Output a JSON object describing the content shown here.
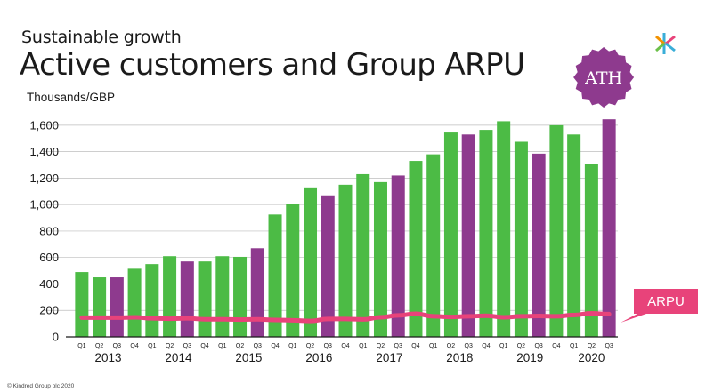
{
  "header": {
    "subtitle": "Sustainable growth",
    "title": "Active customers and Group ARPU",
    "units": "Thousands/GBP"
  },
  "footer": {
    "copyright": "© Kindred Group plc 2020"
  },
  "callouts": {
    "ath": "ATH",
    "arpu": "ARPU"
  },
  "colors": {
    "green": "#4cbb45",
    "purple": "#8e3a8e",
    "pink": "#e8437a",
    "ath_badge": "#8e3a8e",
    "logo_orange": "#f39200",
    "logo_green": "#6cc04a",
    "logo_pink": "#e8437a",
    "logo_blue": "#3aaed8"
  },
  "chart_data": {
    "type": "bar",
    "title": "Active customers and Group ARPU",
    "ylabel": "Thousands/GBP",
    "ylim": [
      0,
      1700
    ],
    "yticks": [
      0,
      200,
      400,
      600,
      800,
      "1,000",
      "1,200",
      "1,400",
      "1,600"
    ],
    "ytick_values": [
      0,
      200,
      400,
      600,
      800,
      1000,
      1200,
      1400,
      1600
    ],
    "grid": true,
    "categories": [
      "Q1",
      "Q2",
      "Q3",
      "Q4",
      "Q1",
      "Q2",
      "Q3",
      "Q4",
      "Q1",
      "Q2",
      "Q3",
      "Q4",
      "Q1",
      "Q2",
      "Q3",
      "Q4",
      "Q1",
      "Q2",
      "Q3",
      "Q4",
      "Q1",
      "Q2",
      "Q3",
      "Q4",
      "Q1",
      "Q2",
      "Q3",
      "Q4",
      "Q1",
      "Q2",
      "Q3"
    ],
    "years": [
      {
        "label": "2013",
        "start": 0
      },
      {
        "label": "2014",
        "start": 4
      },
      {
        "label": "2015",
        "start": 8
      },
      {
        "label": "2016",
        "start": 12
      },
      {
        "label": "2017",
        "start": 16
      },
      {
        "label": "2018",
        "start": 20
      },
      {
        "label": "2019",
        "start": 24
      },
      {
        "label": "2020",
        "start": 28
      }
    ],
    "series": [
      {
        "name": "Active customers",
        "values": [
          490,
          450,
          450,
          515,
          550,
          610,
          570,
          570,
          610,
          605,
          670,
          925,
          1005,
          1130,
          1070,
          1150,
          1230,
          1170,
          1220,
          1330,
          1380,
          1545,
          1530,
          1565,
          1630,
          1475,
          1385,
          1600,
          1530,
          1310,
          1645
        ],
        "highlight_q3": true
      },
      {
        "name": "ARPU",
        "values": [
          145,
          145,
          145,
          148,
          140,
          137,
          140,
          133,
          133,
          130,
          133,
          128,
          125,
          120,
          135,
          135,
          132,
          148,
          162,
          175,
          155,
          150,
          155,
          160,
          148,
          155,
          158,
          155,
          165,
          178,
          172
        ]
      }
    ]
  }
}
